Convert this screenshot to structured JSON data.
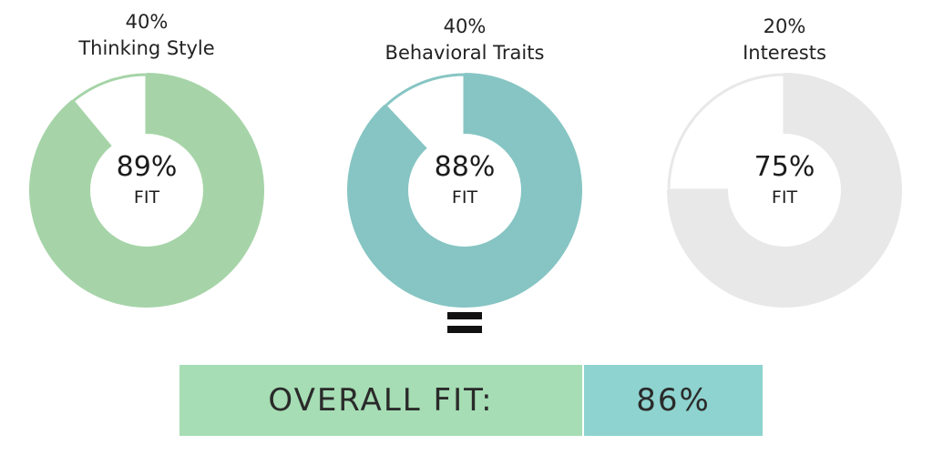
{
  "chart_data": {
    "type": "pie",
    "charts": [
      {
        "weight_label": "40%",
        "name": "Thinking Style",
        "value": 89,
        "value_label": "89%",
        "unit_label": "FIT",
        "color": "#a6d4a8"
      },
      {
        "weight_label": "40%",
        "name": "Behavioral Traits",
        "value": 88,
        "value_label": "88%",
        "unit_label": "FIT",
        "color": "#86c5c3"
      },
      {
        "weight_label": "20%",
        "name": "Interests",
        "value": 75,
        "value_label": "75%",
        "unit_label": "FIT",
        "color": "#e8e8e8"
      }
    ],
    "equals_symbol": "=",
    "overall": {
      "label": "OVERALL FIT:",
      "value": 86,
      "value_label": "86%"
    },
    "colors": {
      "overall_label_bg": "#a6ddb4",
      "overall_value_bg": "#8ed3cf",
      "remainder": "#ffffff"
    }
  }
}
